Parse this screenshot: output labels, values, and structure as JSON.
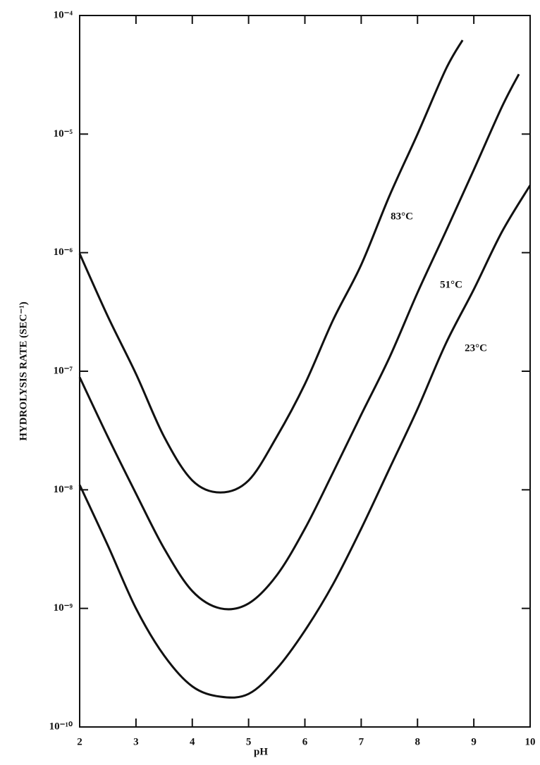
{
  "chart_data": {
    "type": "line",
    "x_label": "pH",
    "y_label": "HYDROLYSIS RATE (SEC⁻¹)",
    "xlim": [
      2,
      10
    ],
    "xticks": [
      2,
      3,
      4,
      5,
      6,
      7,
      8,
      9,
      10
    ],
    "ylim": [
      1e-10,
      0.0001
    ],
    "y_scale": "log",
    "yticks": [
      {
        "value": 1e-10,
        "label": "10⁻¹⁰"
      },
      {
        "value": 1e-09,
        "label": "10⁻⁹"
      },
      {
        "value": 1e-08,
        "label": "10⁻⁸"
      },
      {
        "value": 1e-07,
        "label": "10⁻⁷"
      },
      {
        "value": 1e-06,
        "label": "10⁻⁶"
      },
      {
        "value": 1e-05,
        "label": "10⁻⁵"
      },
      {
        "value": 0.0001,
        "label": "10⁻⁴"
      }
    ],
    "grid": false,
    "series": [
      {
        "name": "83°C",
        "color": "#111111",
        "x": [
          2,
          2.5,
          3,
          3.5,
          4,
          4.5,
          5,
          5.5,
          6,
          6.5,
          7,
          7.5,
          8,
          8.5,
          8.8
        ],
        "values": [
          9.8e-07,
          2.9e-07,
          9.5e-08,
          2.8e-08,
          1.2e-08,
          9.5e-09,
          1.2e-08,
          2.8e-08,
          7.8e-08,
          2.7e-07,
          7.9e-07,
          3e-06,
          1e-05,
          3.5e-05,
          6.2e-05
        ]
      },
      {
        "name": "51°C",
        "color": "#111111",
        "x": [
          2,
          2.5,
          3,
          3.5,
          4,
          4.5,
          5,
          5.5,
          6,
          6.5,
          7,
          7.5,
          8,
          8.5,
          9,
          9.5,
          9.8
        ],
        "values": [
          8.9e-08,
          2.8e-08,
          9.3e-09,
          3.2e-09,
          1.4e-09,
          1e-09,
          1.1e-09,
          1.9e-09,
          4.7e-09,
          1.4e-08,
          4.3e-08,
          1.3e-07,
          4.6e-07,
          1.5e-06,
          5e-06,
          1.7e-05,
          3.2e-05
        ]
      },
      {
        "name": "23°C",
        "color": "#111111",
        "x": [
          2,
          2.5,
          3,
          3.5,
          4,
          4.5,
          5,
          5.5,
          6,
          6.5,
          7,
          7.5,
          8,
          8.5,
          9,
          9.5,
          10
        ],
        "values": [
          1.1e-08,
          3.4e-09,
          1e-09,
          4e-10,
          2.2e-10,
          1.8e-10,
          1.9e-10,
          3.1e-10,
          6.5e-10,
          1.6e-09,
          4.7e-09,
          1.5e-08,
          4.8e-08,
          1.7e-07,
          4.9e-07,
          1.5e-06,
          3.7e-06
        ]
      }
    ]
  }
}
